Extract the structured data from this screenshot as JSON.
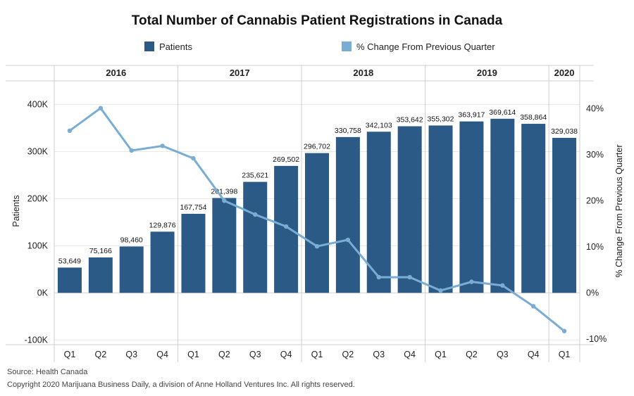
{
  "chart_data": {
    "type": "bar",
    "title": "Total Number of Cannabis Patient Registrations in Canada",
    "years": [
      {
        "label": "2016",
        "quarters": 4
      },
      {
        "label": "2017",
        "quarters": 4
      },
      {
        "label": "2018",
        "quarters": 4
      },
      {
        "label": "2019",
        "quarters": 4
      },
      {
        "label": "2020",
        "quarters": 1
      }
    ],
    "categories": [
      "Q1",
      "Q2",
      "Q3",
      "Q4",
      "Q1",
      "Q2",
      "Q3",
      "Q4",
      "Q1",
      "Q2",
      "Q3",
      "Q4",
      "Q1",
      "Q2",
      "Q3",
      "Q4",
      "Q1"
    ],
    "series": [
      {
        "name": "Patients",
        "type": "bar",
        "axis": "left",
        "values": [
          53649,
          75166,
          98460,
          129876,
          167754,
          201398,
          235621,
          269502,
          296702,
          330758,
          342103,
          353642,
          355302,
          363917,
          369614,
          358864,
          329038
        ],
        "labels": [
          "53,649",
          "75,166",
          "98,460",
          "129,876",
          "167,754",
          "201,398",
          "235,621",
          "269,502",
          "296,702",
          "330,758",
          "342,103",
          "353,642",
          "355,302",
          "363,917",
          "369,614",
          "358,864",
          "329,038"
        ]
      },
      {
        "name": "% Change From Previous Quarter",
        "type": "line",
        "axis": "right",
        "values": [
          35.2,
          40.1,
          30.9,
          31.9,
          29.2,
          20.0,
          17.0,
          14.4,
          10.1,
          11.5,
          3.4,
          3.4,
          0.5,
          2.4,
          1.6,
          -2.9,
          -8.3
        ]
      }
    ],
    "ylabel": "Patients",
    "y2label": "% Change From Previous Quarter",
    "ylim": [
      -110000,
      450000
    ],
    "yticks": [
      -100000,
      0,
      100000,
      200000,
      300000,
      400000
    ],
    "ytick_labels": [
      "-100K",
      "0K",
      "100K",
      "200K",
      "300K",
      "400K"
    ],
    "y2lim": [
      -10,
      40
    ],
    "y2ticks": [
      -10,
      0,
      10,
      20,
      30,
      40
    ],
    "y2tick_labels": [
      "-10%",
      "0%",
      "10%",
      "20%",
      "30%",
      "40%"
    ],
    "legend_position": "top",
    "colors": {
      "bar": "#2c5a87",
      "line": "#7aadd3",
      "grid": "#e8e8e8",
      "divider": "#cfcfcf"
    }
  },
  "footer": {
    "source": "Source: Health Canada",
    "copyright": "Copyright 2020 Marijuana Business Daily, a division of Anne Holland Ventures Inc. All rights reserved."
  }
}
